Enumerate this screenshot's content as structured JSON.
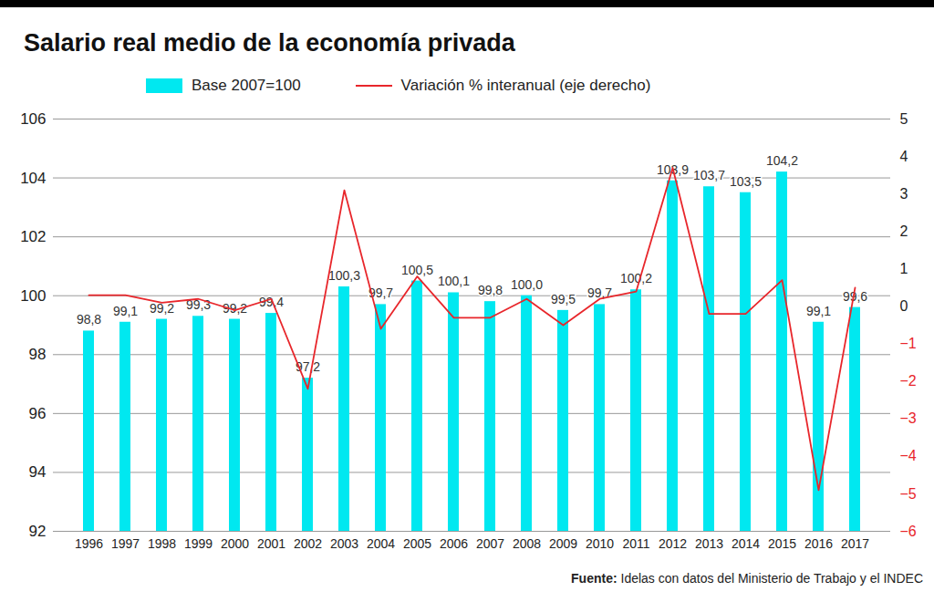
{
  "chart_data": {
    "type": "bar",
    "title": "Salario real medio de la economía privada",
    "source_label": "Fuente:",
    "source": "Idelas con datos del Ministerio de Trabajo y el INDEC",
    "categories": [
      "1996",
      "1997",
      "1998",
      "1999",
      "2000",
      "2001",
      "2002",
      "2003",
      "2004",
      "2005",
      "2006",
      "2007",
      "2008",
      "2009",
      "2010",
      "2011",
      "2012",
      "2013",
      "2014",
      "2015",
      "2016",
      "2017"
    ],
    "series": [
      {
        "name": "Base 2007=100",
        "type": "bar",
        "color": "#00e8f0",
        "values": [
          98.8,
          99.1,
          99.2,
          99.3,
          99.2,
          99.4,
          97.2,
          100.3,
          99.7,
          100.5,
          100.1,
          99.8,
          100.0,
          99.5,
          99.7,
          100.2,
          103.9,
          103.7,
          103.5,
          104.2,
          99.1,
          99.6
        ],
        "value_labels": [
          "98,8",
          "99,1",
          "99,2",
          "99,3",
          "99,2",
          "99,4",
          "97,2",
          "100,3",
          "99,7",
          "100,5",
          "100,1",
          "99,8",
          "100,0",
          "99,5",
          "99,7",
          "100,2",
          "103,9",
          "103,7",
          "103,5",
          "104,2",
          "99,1",
          "99,6"
        ]
      },
      {
        "name": "Variación % interanual (eje derecho)",
        "type": "line",
        "color": "#e8262b",
        "axis": "y2",
        "values": [
          0.3,
          0.3,
          0.1,
          0.2,
          -0.1,
          0.2,
          -2.2,
          3.1,
          -0.6,
          0.8,
          -0.3,
          -0.3,
          0.2,
          -0.5,
          0.2,
          0.4,
          3.7,
          -0.2,
          -0.2,
          0.7,
          -4.9,
          0.5
        ]
      }
    ],
    "ylim": [
      92,
      106
    ],
    "yticks": [
      92,
      94,
      96,
      98,
      100,
      102,
      104,
      106
    ],
    "y2lim": [
      -6,
      5
    ],
    "y2ticks": [
      -6,
      -5,
      -4,
      -3,
      -2,
      -1,
      0,
      1,
      2,
      3,
      4,
      5
    ],
    "grid": true,
    "data_labels": true
  }
}
